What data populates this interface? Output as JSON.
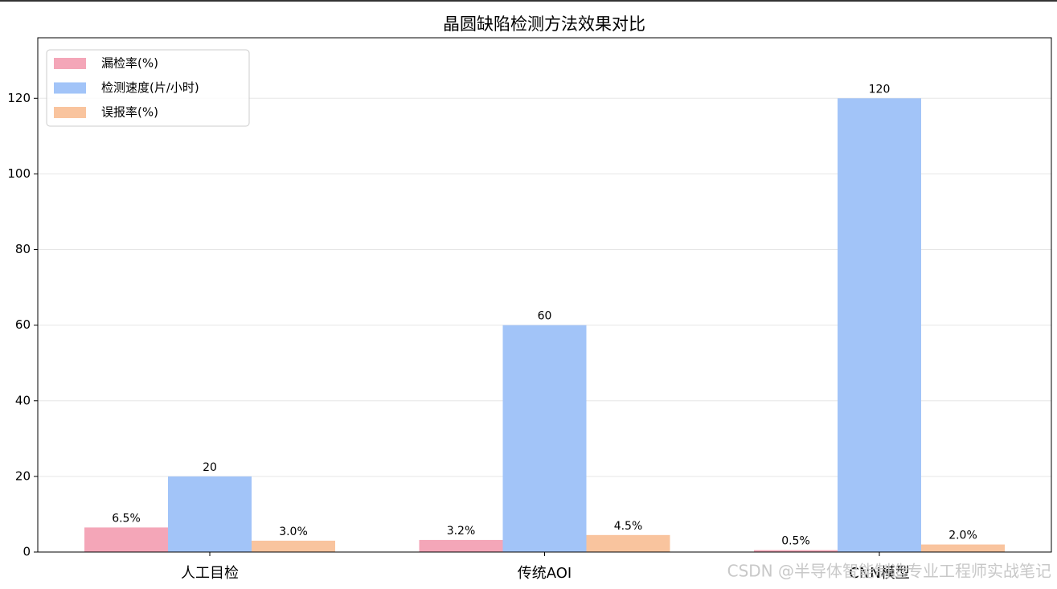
{
  "chart_data": {
    "type": "bar",
    "title": "晶圆缺陷检测方法效果对比",
    "categories": [
      "人工目检",
      "传统AOI",
      "CNN模型"
    ],
    "series": [
      {
        "name": "漏检率(%)",
        "color": "#f4a6b8",
        "values": [
          6.5,
          3.2,
          0.5
        ],
        "value_labels": [
          "6.5%",
          "3.2%",
          "0.5%"
        ]
      },
      {
        "name": "检测速度(片/小时)",
        "color": "#a2c4f8",
        "values": [
          20,
          60,
          120
        ]
      },
      {
        "name": "误报率(%)",
        "color": "#f9c49e",
        "values": [
          3.0,
          4.5,
          2.0
        ],
        "value_labels": [
          "3.0%",
          "4.5%",
          "2.0%"
        ]
      }
    ],
    "ylim": [
      0,
      136
    ],
    "yticks": [
      0,
      20,
      40,
      60,
      80,
      100,
      120
    ],
    "grid": true,
    "legend": "upper left",
    "watermark": "CSDN @半导体智能制造专业工程师实战笔记"
  }
}
